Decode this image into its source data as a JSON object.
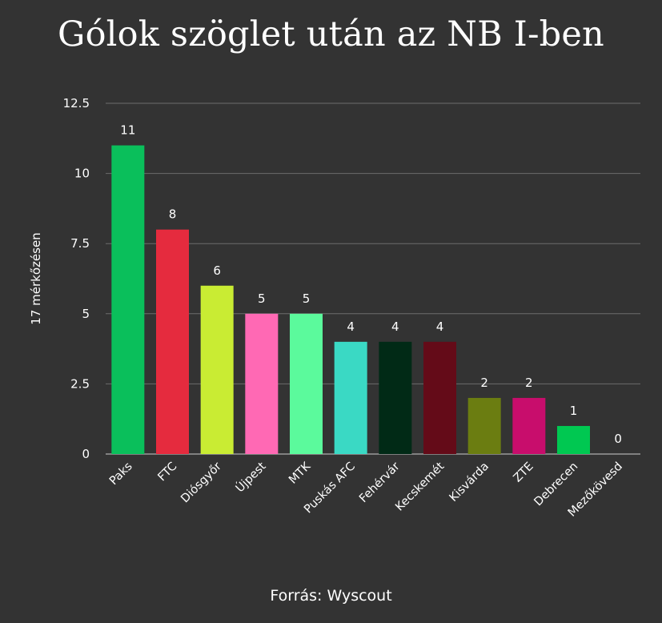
{
  "chart_data": {
    "type": "bar",
    "title": "Gólok szöglet után az NB I-ben",
    "ylabel": "17 mérkőzésen",
    "source": "Forrás: Wyscout",
    "ylim": [
      0,
      12.5
    ],
    "yticks": [
      0,
      2.5,
      5,
      7.5,
      10,
      12.5
    ],
    "ytick_labels": [
      "0",
      "2.5",
      "5",
      "7.5",
      "10",
      "12.5"
    ],
    "grid": true,
    "categories": [
      "Paks",
      "FTC",
      "Diósgyőr",
      "Újpest",
      "MTK",
      "Puskás AFC",
      "Fehérvár",
      "Kecskemét",
      "Kisvárda",
      "ZTE",
      "Debrecen",
      "Mezőkövesd"
    ],
    "values": [
      11,
      8,
      6,
      5,
      5,
      4,
      4,
      4,
      2,
      2,
      1,
      0
    ],
    "colors": [
      "#0abf5b",
      "#e52b3e",
      "#c9ec33",
      "#ff69b4",
      "#5bfa9c",
      "#3ad9c4",
      "#012a16",
      "#640b18",
      "#6b7d11",
      "#c80d6c",
      "#00c851",
      "#0a7f3c"
    ]
  }
}
